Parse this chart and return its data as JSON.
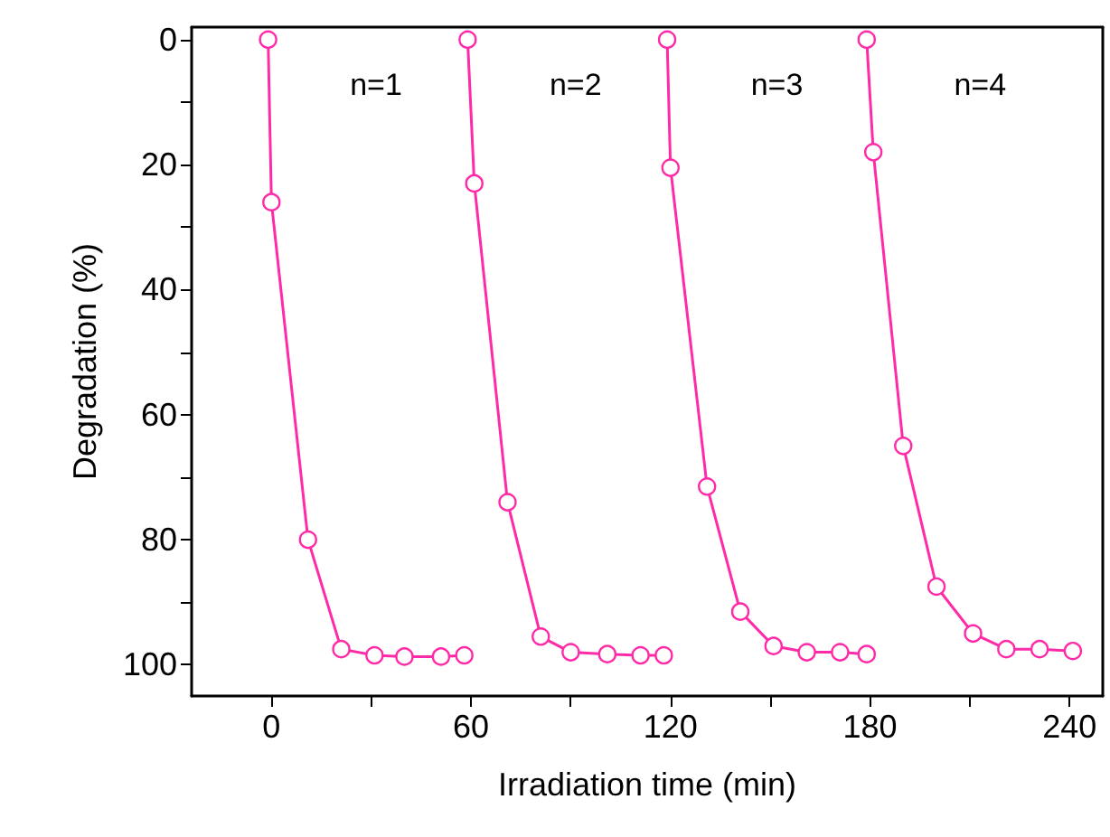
{
  "chart_data": {
    "type": "line",
    "xlabel": "Irradiation time (min)",
    "ylabel": "Degradation (%)",
    "xlim": [
      -24,
      250
    ],
    "ylim": [
      105,
      -2
    ],
    "xticks": [
      0,
      {
        "value": 30,
        "label": null
      },
      60,
      {
        "value": 90,
        "label": null
      },
      120,
      {
        "value": 150,
        "label": null
      },
      180,
      {
        "value": 210,
        "label": null
      },
      240
    ],
    "yticks": [
      0,
      {
        "value": 10,
        "label": null
      },
      20,
      {
        "value": 30,
        "label": null
      },
      40,
      {
        "value": 50,
        "label": null
      },
      60,
      {
        "value": 70,
        "label": null
      },
      80,
      {
        "value": 90,
        "label": null
      },
      100
    ],
    "grid": false,
    "marker": "circle",
    "line_style": "solid",
    "series": [
      {
        "color": "#ff2aa8",
        "x": [
          -1,
          0,
          11,
          21,
          31,
          40,
          51,
          58
        ],
        "values": [
          0,
          26,
          80,
          97.5,
          98.5,
          98.7,
          98.7,
          98.5
        ]
      },
      {
        "color": "#ff2aa8",
        "x": [
          59,
          61,
          71,
          81,
          90,
          101,
          111,
          118
        ],
        "values": [
          0,
          23,
          74,
          95.5,
          98,
          98.3,
          98.5,
          98.5
        ]
      },
      {
        "color": "#ff2aa8",
        "x": [
          119,
          120,
          131,
          141,
          151,
          161,
          171,
          179
        ],
        "values": [
          0,
          20.5,
          71.5,
          91.5,
          97,
          98,
          98,
          98.3
        ]
      },
      {
        "color": "#ff2aa8",
        "x": [
          179,
          181,
          190,
          200,
          211,
          221,
          231,
          241
        ],
        "values": [
          0,
          18,
          65,
          87.5,
          95,
          97.5,
          97.5,
          97.8
        ]
      }
    ],
    "annotations": [
      "n=1",
      "n=2",
      "n=3",
      "n=4"
    ]
  }
}
